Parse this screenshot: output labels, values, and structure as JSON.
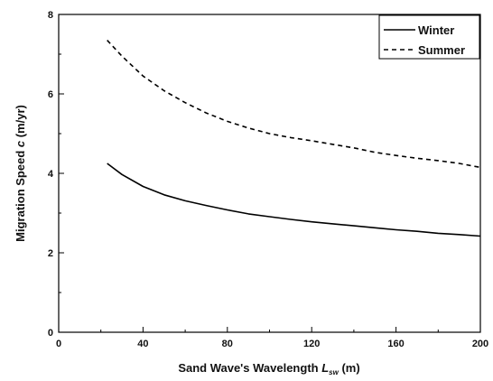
{
  "chart_data": {
    "type": "line",
    "xlabel": {
      "prefix": "Sand Wave's Wavelength ",
      "symbol": "L",
      "sub": "sw",
      "suffix": " (m)"
    },
    "ylabel": {
      "prefix": "Migration Speed ",
      "symbol": "c",
      "suffix": " (m/yr)"
    },
    "xlim": [
      0,
      200
    ],
    "ylim": [
      0,
      8
    ],
    "xticks": [
      0,
      40,
      80,
      120,
      160,
      200
    ],
    "yticks": [
      0,
      2,
      4,
      6,
      8
    ],
    "xtick_labels": [
      "0",
      "40",
      "80",
      "120",
      "160",
      "200"
    ],
    "ytick_labels": [
      "0",
      "2",
      "4",
      "6",
      "8"
    ],
    "grid": false,
    "legend_position": "top-right",
    "series": [
      {
        "name": "Winter",
        "style": "solid",
        "color": "#000000",
        "x": [
          23,
          30,
          40,
          50,
          60,
          70,
          80,
          90,
          100,
          110,
          120,
          130,
          140,
          150,
          160,
          170,
          180,
          190,
          200
        ],
        "y": [
          4.25,
          3.97,
          3.67,
          3.46,
          3.31,
          3.19,
          3.08,
          2.98,
          2.91,
          2.84,
          2.78,
          2.73,
          2.68,
          2.63,
          2.58,
          2.54,
          2.49,
          2.46,
          2.42
        ]
      },
      {
        "name": "Summer",
        "style": "dashed",
        "color": "#000000",
        "x": [
          23,
          30,
          40,
          50,
          60,
          70,
          80,
          90,
          100,
          110,
          120,
          130,
          140,
          150,
          160,
          170,
          180,
          190,
          200
        ],
        "y": [
          7.35,
          6.95,
          6.45,
          6.08,
          5.78,
          5.52,
          5.31,
          5.14,
          5.0,
          4.9,
          4.82,
          4.73,
          4.64,
          4.53,
          4.45,
          4.38,
          4.32,
          4.25,
          4.15
        ]
      }
    ]
  }
}
